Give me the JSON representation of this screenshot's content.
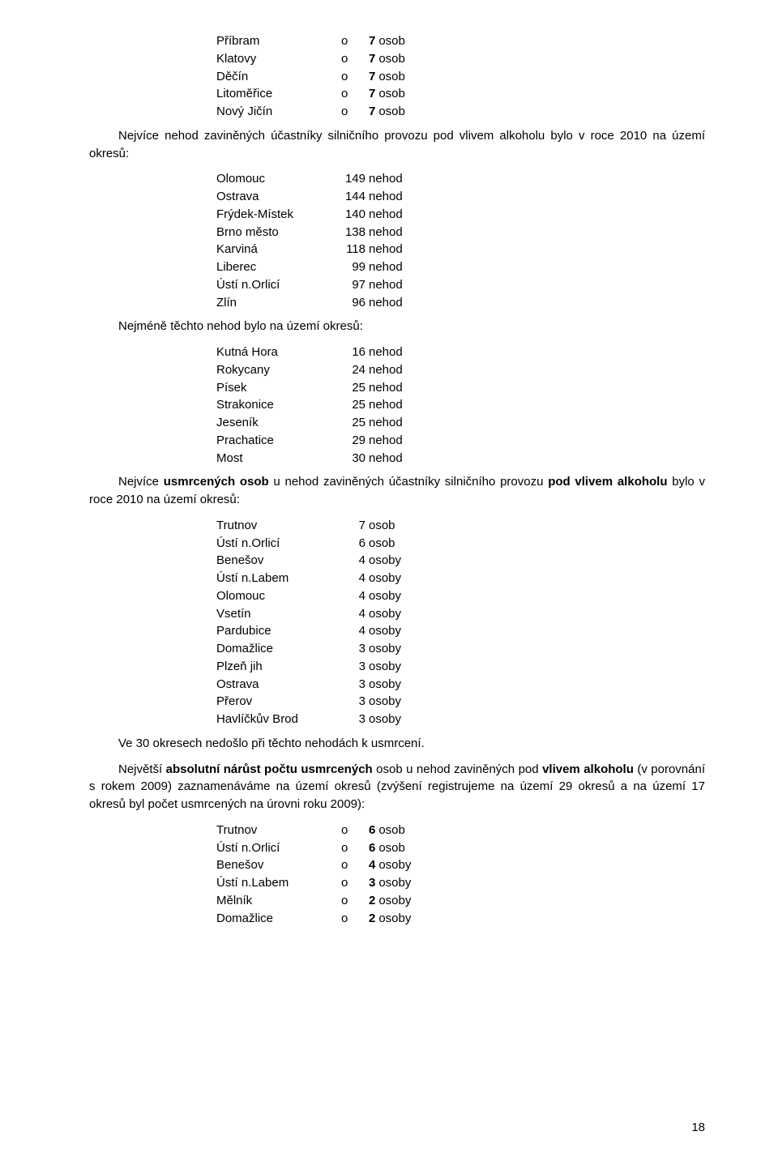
{
  "table1": {
    "rows": [
      {
        "name": "Příbram",
        "o": "o",
        "val": "7",
        "unit": "osob"
      },
      {
        "name": "Klatovy",
        "o": "o",
        "val": "7",
        "unit": "osob"
      },
      {
        "name": "Děčín",
        "o": "o",
        "val": "7",
        "unit": "osob"
      },
      {
        "name": "Litoměřice",
        "o": "o",
        "val": "7",
        "unit": "osob"
      },
      {
        "name": "Nový Jičín",
        "o": "o",
        "val": "7",
        "unit": "osob"
      }
    ]
  },
  "para1_pre": "Nejvíce nehod zaviněných účastníky silničního provozu pod vlivem alkoholu bylo v roce 2010 na území okresů:",
  "table2": {
    "rows": [
      {
        "name": "Olomouc",
        "val": "149",
        "unit": "nehod"
      },
      {
        "name": "Ostrava",
        "val": "144",
        "unit": "nehod"
      },
      {
        "name": "Frýdek-Místek",
        "val": "140",
        "unit": "nehod"
      },
      {
        "name": "Brno město",
        "val": "138",
        "unit": "nehod"
      },
      {
        "name": "Karviná",
        "val": "118",
        "unit": "nehod"
      },
      {
        "name": "Liberec",
        "val": "99",
        "unit": "nehod"
      },
      {
        "name": "Ústí n.Orlicí",
        "val": "97",
        "unit": "nehod"
      },
      {
        "name": "Zlín",
        "val": "96",
        "unit": "nehod"
      }
    ]
  },
  "para2": "Nejméně těchto nehod bylo na území okresů:",
  "table3": {
    "rows": [
      {
        "name": "Kutná Hora",
        "val": "16",
        "unit": "nehod"
      },
      {
        "name": "Rokycany",
        "val": "24",
        "unit": "nehod"
      },
      {
        "name": "Písek",
        "val": "25",
        "unit": "nehod"
      },
      {
        "name": "Strakonice",
        "val": "25",
        "unit": "nehod"
      },
      {
        "name": "Jeseník",
        "val": "25",
        "unit": "nehod"
      },
      {
        "name": "Prachatice",
        "val": "29",
        "unit": "nehod"
      },
      {
        "name": "Most",
        "val": "30",
        "unit": "nehod"
      }
    ]
  },
  "para3": {
    "t1": "Nejvíce ",
    "b1": "usmrcených osob",
    "t2": " u nehod zaviněných účastníky silničního provozu ",
    "b2": "pod vlivem alkoholu",
    "t3": " bylo v roce 2010 na území okresů:"
  },
  "table4": {
    "rows": [
      {
        "name": "Trutnov",
        "val": "7",
        "unit": "osob"
      },
      {
        "name": "Ústí n.Orlicí",
        "val": "6",
        "unit": "osob"
      },
      {
        "name": "Benešov",
        "val": "4",
        "unit": "osoby"
      },
      {
        "name": "Ústí n.Labem",
        "val": "4",
        "unit": "osoby"
      },
      {
        "name": "Olomouc",
        "val": "4",
        "unit": "osoby"
      },
      {
        "name": "Vsetín",
        "val": "4",
        "unit": "osoby"
      },
      {
        "name": "Pardubice",
        "val": "4",
        "unit": "osoby"
      },
      {
        "name": "Domažlice",
        "val": "3",
        "unit": "osoby"
      },
      {
        "name": "Plzeň jih",
        "val": "3",
        "unit": "osoby"
      },
      {
        "name": "Ostrava",
        "val": "3",
        "unit": "osoby"
      },
      {
        "name": "Přerov",
        "val": "3",
        "unit": "osoby"
      },
      {
        "name": "Havlíčkův Brod",
        "val": "3",
        "unit": "osoby"
      }
    ]
  },
  "para4": "Ve 30 okresech nedošlo při těchto nehodách k usmrcení.",
  "para5": {
    "t1": "Největší ",
    "b1": "absolutní nárůst počtu usmrcených",
    "t2": " osob u nehod zaviněných pod ",
    "b2": "vlivem alkoholu",
    "t3": " (v porovnání s rokem 2009) zaznamenáváme na území okresů (zvýšení registrujeme na území 29 okresů a na území 17 okresů byl počet usmrcených na úrovni roku 2009):"
  },
  "table5": {
    "rows": [
      {
        "name": "Trutnov",
        "o": "o",
        "val": "6",
        "unit": "osob"
      },
      {
        "name": "Ústí n.Orlicí",
        "o": "o",
        "val": "6",
        "unit": "osob"
      },
      {
        "name": "Benešov",
        "o": "o",
        "val": "4",
        "unit": "osoby"
      },
      {
        "name": "Ústí n.Labem",
        "o": "o",
        "val": "3",
        "unit": "osoby"
      },
      {
        "name": "Mělník",
        "o": "o",
        "val": "2",
        "unit": "osoby"
      },
      {
        "name": "Domažlice",
        "o": "o",
        "val": "2",
        "unit": "osoby"
      }
    ]
  },
  "pageNumber": "18"
}
